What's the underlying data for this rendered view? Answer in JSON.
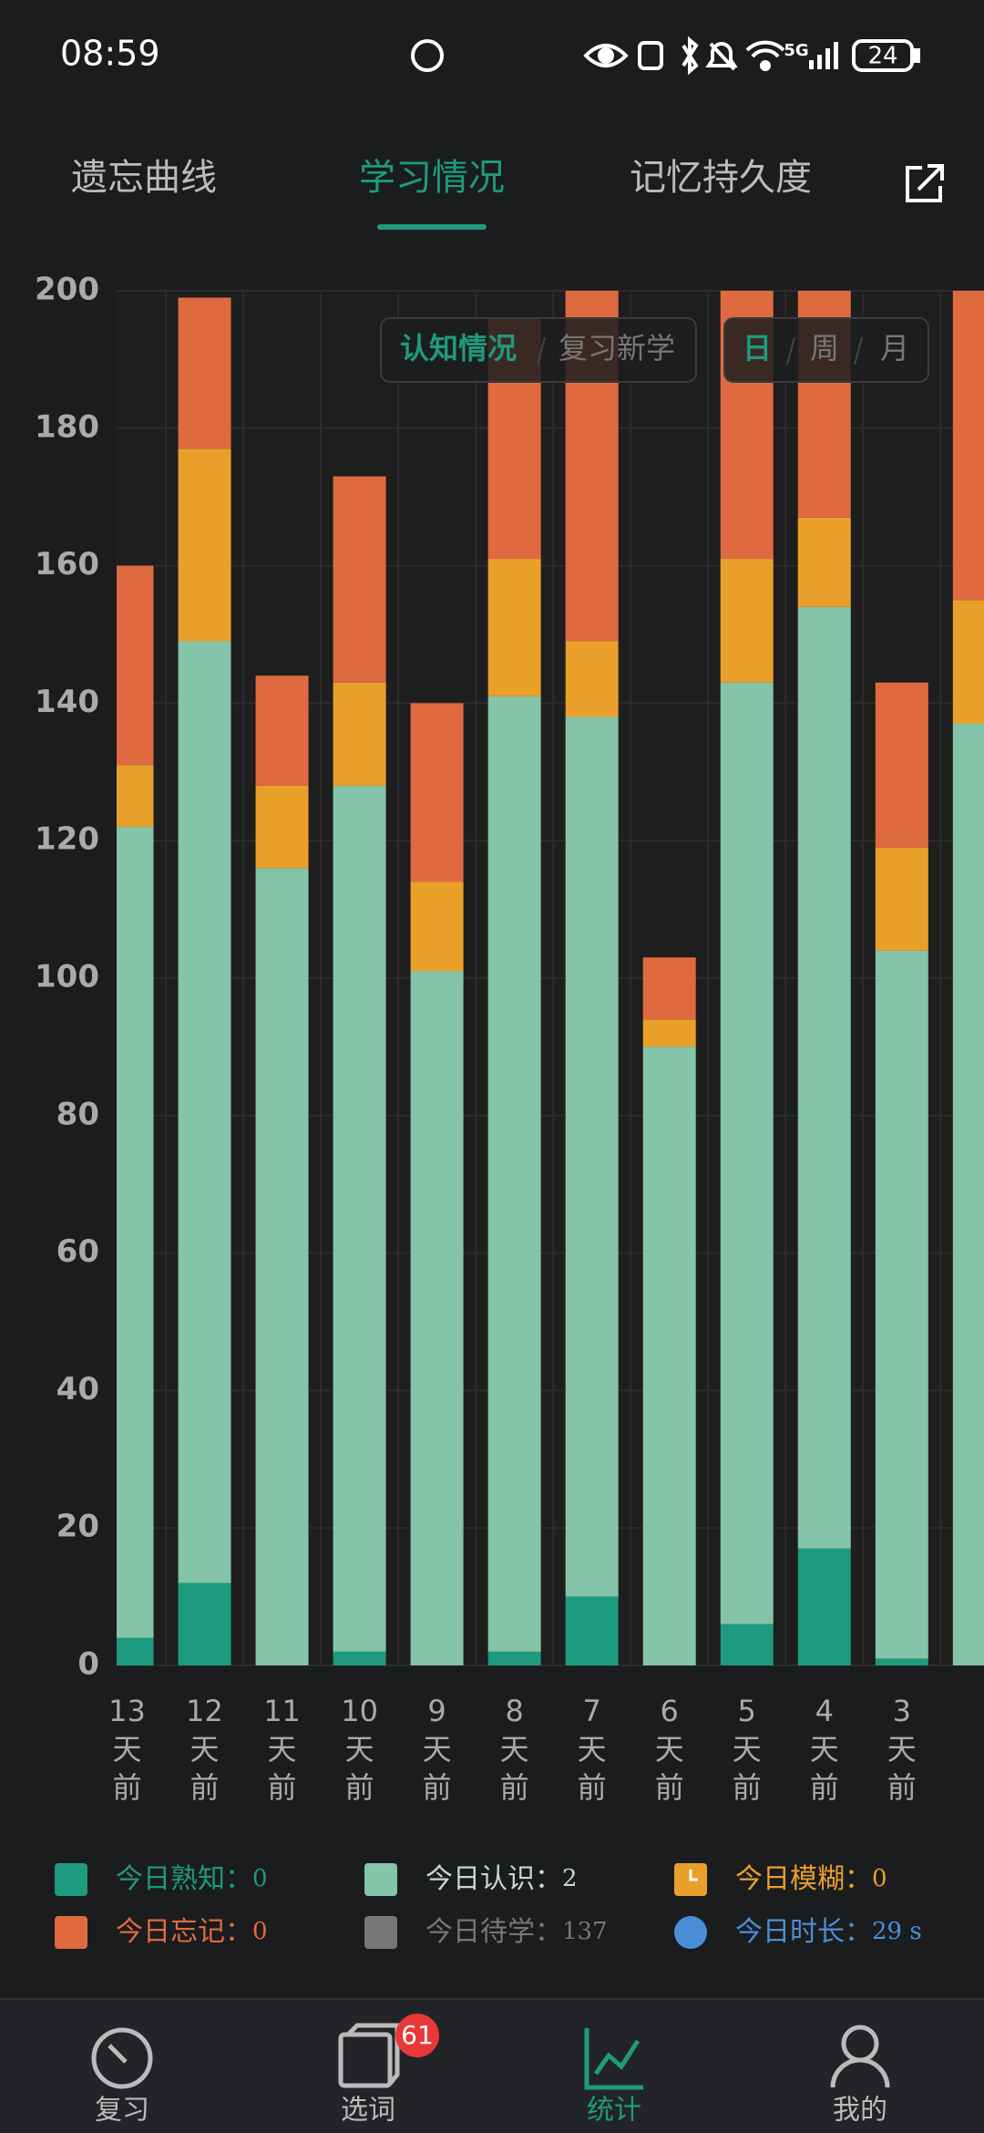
{
  "status_bar": {
    "time": "08:59",
    "network": "5G",
    "battery": "24"
  },
  "tabs": {
    "items": [
      "遗忘曲线",
      "学习情况",
      "记忆持久度"
    ],
    "active": 1
  },
  "toggles": {
    "mode": [
      "认知情况",
      "复习新学"
    ],
    "mode_active": 0,
    "period": [
      "日",
      "周",
      "月"
    ],
    "period_active": 0
  },
  "chart_data": {
    "type": "stacked-bar",
    "categories": [
      "13\n天\n前",
      "12\n天\n前",
      "11\n天\n前",
      "10\n天\n前",
      "9\n天\n前",
      "8\n天\n前",
      "7\n天\n前",
      "6\n天\n前",
      "5\n天\n前",
      "4\n天\n前",
      "3\n天\n前",
      null
    ],
    "series": [
      {
        "name": "今日熟知：",
        "color": "#1e9a7e",
        "values": [
          4,
          12,
          0,
          2,
          0,
          2,
          10,
          0,
          6,
          17,
          1,
          0
        ]
      },
      {
        "name": "今日认识：",
        "color": "#84c4a9",
        "values": [
          118,
          137,
          116,
          126,
          101,
          139,
          128,
          90,
          137,
          137,
          103,
          137
        ]
      },
      {
        "name": "今日模糊：",
        "color": "#e9a02a",
        "values": [
          9,
          28,
          12,
          15,
          13,
          20,
          11,
          4,
          18,
          13,
          15,
          18
        ]
      },
      {
        "name": "今日忘记：",
        "color": "#e06a40",
        "values": [
          29,
          22,
          16,
          30,
          26,
          35,
          60,
          9,
          45,
          40,
          24,
          50
        ]
      }
    ],
    "ylim": [
      0,
      200
    ],
    "yticks": [
      0,
      20,
      40,
      60,
      80,
      100,
      120,
      140,
      160,
      180,
      200
    ],
    "grid": true
  },
  "today": {
    "values": [
      0,
      2,
      0,
      0
    ],
    "pending_label": "今日待学：",
    "pending": 137,
    "pending_color": "#777777",
    "duration_label": "今日时长：",
    "duration": "29 s",
    "duration_color": "#4a8fd6"
  },
  "nav": {
    "items": [
      "复习",
      "选词",
      "统计",
      "我的"
    ],
    "badge": 61,
    "active": 2
  }
}
